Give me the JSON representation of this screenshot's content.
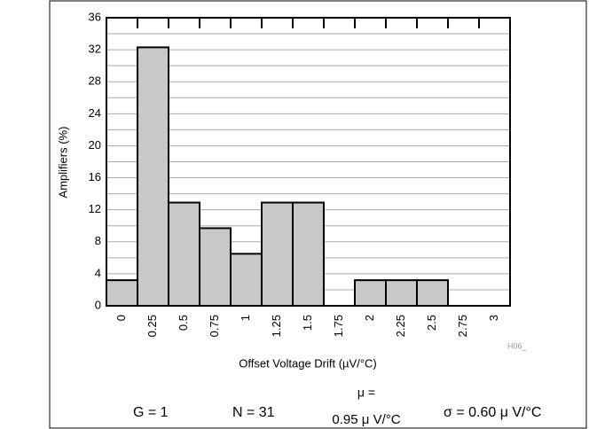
{
  "chart_data": {
    "type": "bar",
    "categories": [
      "0",
      "0.25",
      "0.5",
      "0.75",
      "1",
      "1.25",
      "1.5",
      "1.75",
      "2",
      "2.25",
      "2.5",
      "2.75",
      "3"
    ],
    "values": [
      3.2,
      32.3,
      12.9,
      9.7,
      6.5,
      12.9,
      12.9,
      0,
      3.2,
      3.2,
      3.2,
      0,
      0
    ],
    "color": "#c8c8c8",
    "ylabel": "Amplifiers (%)",
    "xlabel": "Offset Voltage Drift (µV/°C)",
    "ylim": [
      0,
      36
    ],
    "yticks": [
      0,
      4,
      8,
      12,
      16,
      20,
      24,
      28,
      32,
      36
    ],
    "minor_yticks": [
      2,
      6,
      10,
      14,
      18,
      22,
      26,
      30,
      34
    ],
    "grid": true,
    "figure_id": "H06_",
    "footer": [
      "G = 1",
      "N = 31",
      "μ =",
      "0.95 μ V/°C",
      "σ = 0.60 μ V/°C"
    ]
  }
}
